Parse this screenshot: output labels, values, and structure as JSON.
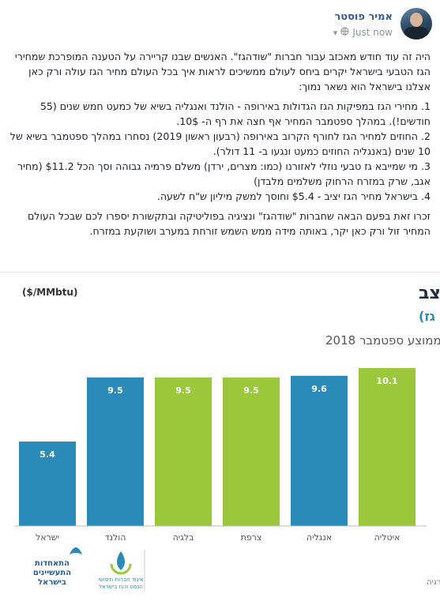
{
  "header": {
    "author": "אמיר פוסטר",
    "time": "Just now",
    "icons": [
      "globe-icon",
      "chevron-down-icon"
    ]
  },
  "post": {
    "intro": "היה זה עוד חודש מאכזב עבור חברות \"שודהגז\". האנשים שבנו קריירה על הטענה המופרכת שמחירי הגז הטבעי בישראל יקרים ביחס לעולם ממשיכים לראות איך בכל העולם מחיר הגז עולה ורק כאן אצלנו בישראל הוא נשאר נמוך:",
    "items": [
      "1. מחירי הגז במפיקות הגז הגדולות באירופה - הולנד ואנגליה בשיא של כמעט חמש שנים (55 חודשים!). במהלך ספטמבר המחיר אף חצה את רף ה- 10$.",
      "2. החוזים למחיר הגז לחורף הקרוב באירופה (רבעון ראשון 2019) נסחרו במהלך ספטמבר בשיא של 10 שנים (באנגליה החוזים כמעט ונגעו ב- 11 דולר).",
      "3. מי שמייבא גז טבעי נוזלי לאזורנו (כמו: מצרים, ירדן) משלם פרמיה גבוהה וסך הכל $11.2 (מחיר אגב, שרק במזרח הרחוק משלמים מלבדן)",
      "4. בישראל מחיר הגז יציב - $5.4 וחוסך למשק מיליון ש\"ח לשעה."
    ],
    "outro": "זכרו זאת בפעם הבאה שחברות \"שודהגז\" ונציגיה בפוליטיקה ובתקשורת יספרו לכם שבכל העולם המחיר זול ורק כאן יקר, באותה מידה ממש השמש זורחת במערב ושוקעת במזרח."
  },
  "chart_data": {
    "type": "bar",
    "title": "מחירי גז טבעי באירופה – תמונת מצב",
    "unit": "($/MMbtu)",
    "subtitle": "(בכחול, מדינות בהן הפקה מקומית משמעותית של גז)",
    "period": "ממוצע ספטמבר 2018",
    "categories": [
      "ישראל",
      "הולנד",
      "בלגיה",
      "צרפת",
      "אנגליה",
      "איטליה"
    ],
    "values": [
      5.4,
      9.5,
      9.5,
      9.5,
      9.6,
      10.1
    ],
    "value_labels": [
      "5.4",
      "9.5",
      "9.5",
      "9.5",
      "9.6",
      "10.1"
    ],
    "bar_colors": [
      "#2a8ab8",
      "#2a8ab8",
      "#9bc83a",
      "#9bc83a",
      "#2a8ab8",
      "#9bc83a"
    ],
    "ylim": [
      0,
      10.5
    ],
    "grid": false,
    "source": "מקור: בלומברג; משרד האנרגיה",
    "logos": [
      {
        "name": "manufacturers-association-logo",
        "text": [
          "התאחדות",
          "התעשיינים",
          "בישראל"
        ],
        "color": "#1f5e9e"
      },
      {
        "name": "oil-gas-forum-logo",
        "text": [
          "איגוד חברות חיפושי",
          "הנפט והגז בישראל"
        ],
        "color": "#2a8ab8"
      }
    ]
  }
}
